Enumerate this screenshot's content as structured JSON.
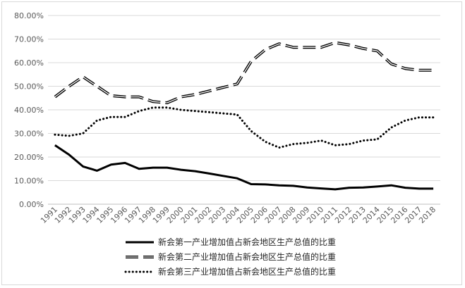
{
  "chart_data": {
    "type": "line",
    "title": "",
    "xlabel": "",
    "ylabel": "",
    "ylim": [
      0,
      80
    ],
    "y_ticks": [
      "0.00%",
      "10.00%",
      "20.00%",
      "30.00%",
      "40.00%",
      "50.00%",
      "60.00%",
      "70.00%",
      "80.00%"
    ],
    "x": [
      "1991",
      "1992",
      "1993",
      "1994",
      "1995",
      "1996",
      "1997",
      "1998",
      "1999",
      "2000",
      "2001",
      "2002",
      "2003",
      "2004",
      "2005",
      "2006",
      "2007",
      "2008",
      "2009",
      "2010",
      "2011",
      "2012",
      "2013",
      "2014",
      "2015",
      "2016",
      "2017",
      "2018"
    ],
    "grid": "horizontal",
    "legend_position": "bottom",
    "series": [
      {
        "name": "新会第一产业增加值占新会地区生产总值的比重",
        "style": "solid",
        "color": "#000000",
        "values": [
          25.0,
          21.0,
          16.0,
          14.2,
          16.8,
          17.5,
          15.0,
          15.5,
          15.5,
          14.6,
          14.0,
          13.0,
          12.0,
          11.0,
          8.5,
          8.4,
          8.0,
          7.8,
          7.1,
          6.7,
          6.3,
          7.0,
          7.1,
          7.5,
          8.0,
          7.0,
          6.6,
          6.6
        ]
      },
      {
        "name": "新会第二产业增加值占新会地区生产总值的比重",
        "style": "double-dash",
        "color": "#000000",
        "values": [
          45.5,
          50.0,
          54.0,
          50.0,
          46.0,
          45.5,
          45.5,
          43.5,
          43.0,
          45.5,
          46.5,
          48.0,
          49.5,
          51.0,
          60.5,
          65.5,
          68.0,
          66.5,
          66.5,
          66.5,
          68.5,
          67.5,
          66.0,
          65.0,
          59.5,
          57.5,
          56.8,
          56.8
        ]
      },
      {
        "name": "新会第三产业增加值占新会地区生产总值的比重",
        "style": "dotted",
        "color": "#000000",
        "values": [
          29.5,
          29.0,
          30.0,
          35.5,
          37.0,
          37.0,
          39.5,
          41.0,
          41.0,
          40.0,
          39.5,
          39.0,
          38.5,
          38.0,
          31.0,
          26.5,
          24.0,
          25.5,
          26.0,
          27.0,
          25.0,
          25.5,
          27.0,
          27.5,
          32.5,
          35.5,
          36.8,
          36.8
        ]
      }
    ]
  }
}
